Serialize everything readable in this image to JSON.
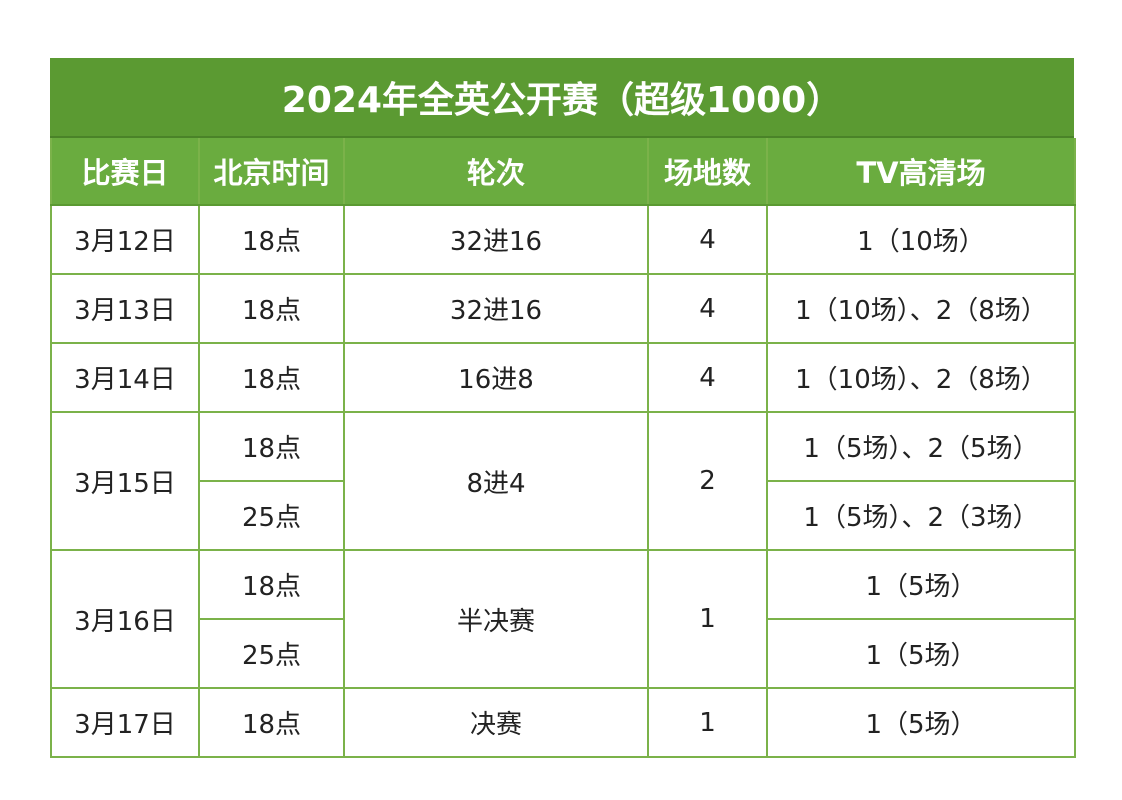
{
  "title": "2024年全英公开赛（超级1000）",
  "headers": [
    "比赛日",
    "北京时间",
    "轮次",
    "场地数",
    "TV高清场"
  ],
  "rows": [
    {
      "date": "3月12日",
      "times": [
        "18点"
      ],
      "round": "32进16",
      "courts": "4",
      "tv": [
        "1（10场）"
      ]
    },
    {
      "date": "3月13日",
      "times": [
        "18点"
      ],
      "round": "32进16",
      "courts": "4",
      "tv": [
        "1（10场）、2（8场）"
      ]
    },
    {
      "date": "3月14日",
      "times": [
        "18点"
      ],
      "round": "16进8",
      "courts": "4",
      "tv": [
        "1（10场）、2（8场）"
      ]
    },
    {
      "date": "3月15日",
      "times": [
        "18点",
        "25点"
      ],
      "round": "8进4",
      "courts": "2",
      "tv": [
        "1（5场）、2（5场）",
        "1（5场）、2（3场）"
      ]
    },
    {
      "date": "3月16日",
      "times": [
        "18点",
        "25点"
      ],
      "round": "半决赛",
      "courts": "1",
      "tv": [
        "1（5场）",
        "1（5场）"
      ]
    },
    {
      "date": "3月17日",
      "times": [
        "18点"
      ],
      "round": "决赛",
      "courts": "1",
      "tv": [
        "1（5场）"
      ]
    }
  ]
}
